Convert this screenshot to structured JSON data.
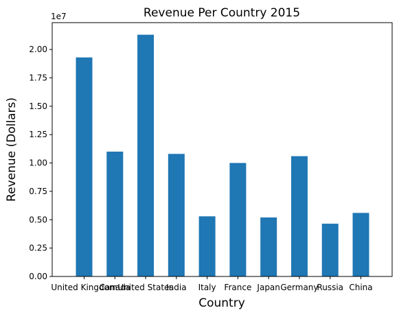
{
  "chart_data": {
    "type": "bar",
    "title": "Revenue Per Country 2015",
    "xlabel": "Country",
    "ylabel": "Revenue (Dollars)",
    "y_offset_label": "1e7",
    "categories": [
      "United Kingdom",
      "Canada",
      "United States",
      "India",
      "Italy",
      "France",
      "Japan",
      "Germany",
      "Russia",
      "China"
    ],
    "values": [
      19300000,
      11000000,
      21300000,
      10800000,
      5300000,
      10000000,
      5200000,
      10600000,
      4650000,
      5600000
    ],
    "yticks": [
      "0.00",
      "0.25",
      "0.50",
      "0.75",
      "1.00",
      "1.25",
      "1.50",
      "1.75",
      "2.00"
    ],
    "ylim": [
      0,
      22365000
    ],
    "grid": false,
    "bar_color": "#1f77b4"
  }
}
